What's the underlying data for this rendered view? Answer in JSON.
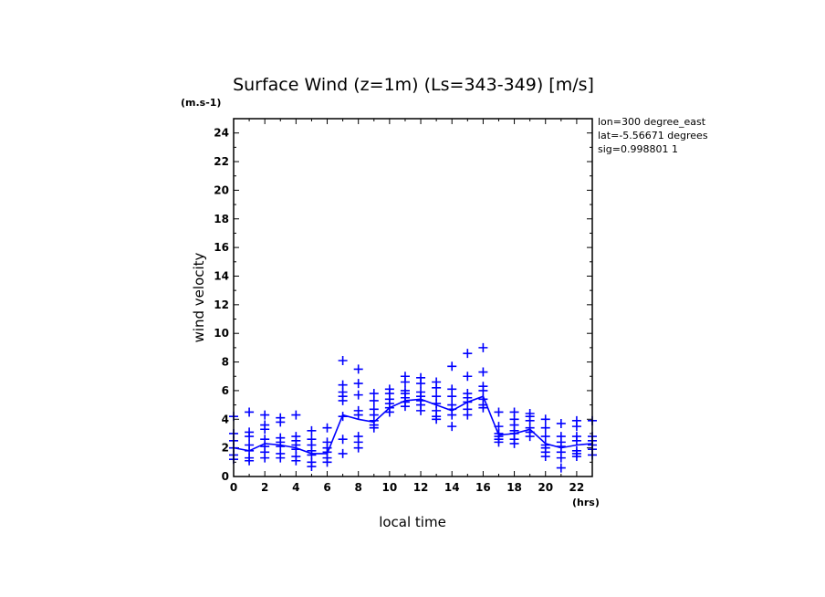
{
  "chart_data": {
    "type": "scatter",
    "title": "Surface Wind (z=1m) (Ls=343-349) [m/s]",
    "y_unit": "(m.s-1)",
    "x_unit": "(hrs)",
    "xlabel": "local time",
    "ylabel": "wind velocity",
    "xlim": [
      0,
      23
    ],
    "ylim": [
      0,
      25
    ],
    "x_ticks": [
      0,
      2,
      4,
      6,
      8,
      10,
      12,
      14,
      16,
      18,
      20,
      22
    ],
    "y_ticks": [
      0,
      2,
      4,
      6,
      8,
      10,
      12,
      14,
      16,
      18,
      20,
      22,
      24
    ],
    "grid": false,
    "info_lines": [
      "lon=300 degree_east",
      "lat=-5.56671 degrees",
      "sig=0.998801 1"
    ],
    "colors": {
      "series": "#0000ff",
      "axes": "#000000"
    },
    "series": [
      {
        "kind": "mean-line",
        "x": [
          0,
          1,
          2,
          3,
          4,
          5,
          6,
          7,
          8,
          9,
          10,
          11,
          12,
          13,
          14,
          15,
          16,
          17,
          18,
          19,
          20,
          21,
          22,
          23
        ],
        "y": [
          2.0,
          1.8,
          2.3,
          2.2,
          2.0,
          1.6,
          1.6,
          4.3,
          4.0,
          3.8,
          4.8,
          5.3,
          5.4,
          5.0,
          4.6,
          5.2,
          5.6,
          2.9,
          3.0,
          3.3,
          2.3,
          2.0,
          2.2,
          2.3
        ]
      },
      {
        "kind": "samples",
        "marker": "+",
        "points": [
          [
            0,
            4.2
          ],
          [
            0,
            3.0
          ],
          [
            0,
            2.5
          ],
          [
            0,
            2.0
          ],
          [
            0,
            1.5
          ],
          [
            0,
            1.2
          ],
          [
            1,
            4.5
          ],
          [
            1,
            3.1
          ],
          [
            1,
            2.8
          ],
          [
            1,
            2.2
          ],
          [
            1,
            1.8
          ],
          [
            1,
            1.3
          ],
          [
            1,
            1.1
          ],
          [
            2,
            4.3
          ],
          [
            2,
            3.6
          ],
          [
            2,
            3.3
          ],
          [
            2,
            2.6
          ],
          [
            2,
            2.1
          ],
          [
            2,
            1.7
          ],
          [
            2,
            1.3
          ],
          [
            3,
            4.1
          ],
          [
            3,
            3.8
          ],
          [
            3,
            2.7
          ],
          [
            3,
            2.4
          ],
          [
            3,
            2.1
          ],
          [
            3,
            1.6
          ],
          [
            3,
            1.3
          ],
          [
            4,
            4.3
          ],
          [
            4,
            2.8
          ],
          [
            4,
            2.5
          ],
          [
            4,
            2.2
          ],
          [
            4,
            1.9
          ],
          [
            4,
            1.4
          ],
          [
            4,
            1.1
          ],
          [
            5,
            3.2
          ],
          [
            5,
            2.6
          ],
          [
            5,
            2.2
          ],
          [
            5,
            1.8
          ],
          [
            5,
            1.5
          ],
          [
            5,
            1.0
          ],
          [
            5,
            0.7
          ],
          [
            6,
            3.4
          ],
          [
            6,
            2.4
          ],
          [
            6,
            2.0
          ],
          [
            6,
            1.7
          ],
          [
            6,
            1.3
          ],
          [
            6,
            1.0
          ],
          [
            7,
            8.1
          ],
          [
            7,
            6.4
          ],
          [
            7,
            5.9
          ],
          [
            7,
            5.6
          ],
          [
            7,
            5.3
          ],
          [
            7,
            4.2
          ],
          [
            7,
            2.6
          ],
          [
            7,
            1.6
          ],
          [
            8,
            7.5
          ],
          [
            8,
            6.5
          ],
          [
            8,
            5.7
          ],
          [
            8,
            4.6
          ],
          [
            8,
            4.3
          ],
          [
            8,
            2.8
          ],
          [
            8,
            2.4
          ],
          [
            8,
            2.0
          ],
          [
            9,
            5.8
          ],
          [
            9,
            5.3
          ],
          [
            9,
            4.7
          ],
          [
            9,
            4.3
          ],
          [
            9,
            3.9
          ],
          [
            9,
            3.6
          ],
          [
            9,
            3.4
          ],
          [
            10,
            6.1
          ],
          [
            10,
            5.8
          ],
          [
            10,
            5.4
          ],
          [
            10,
            5.1
          ],
          [
            10,
            4.8
          ],
          [
            10,
            4.5
          ],
          [
            11,
            7.0
          ],
          [
            11,
            6.6
          ],
          [
            11,
            6.0
          ],
          [
            11,
            5.8
          ],
          [
            11,
            5.5
          ],
          [
            11,
            5.2
          ],
          [
            11,
            4.9
          ],
          [
            12,
            6.9
          ],
          [
            12,
            6.5
          ],
          [
            12,
            5.9
          ],
          [
            12,
            5.6
          ],
          [
            12,
            5.3
          ],
          [
            12,
            5.0
          ],
          [
            12,
            4.6
          ],
          [
            13,
            6.6
          ],
          [
            13,
            6.2
          ],
          [
            13,
            5.6
          ],
          [
            13,
            5.1
          ],
          [
            13,
            4.6
          ],
          [
            13,
            4.2
          ],
          [
            13,
            4.0
          ],
          [
            14,
            7.7
          ],
          [
            14,
            6.1
          ],
          [
            14,
            5.6
          ],
          [
            14,
            5.0
          ],
          [
            14,
            4.7
          ],
          [
            14,
            4.3
          ],
          [
            14,
            3.5
          ],
          [
            15,
            8.6
          ],
          [
            15,
            7.0
          ],
          [
            15,
            5.8
          ],
          [
            15,
            5.5
          ],
          [
            15,
            5.2
          ],
          [
            15,
            4.7
          ],
          [
            15,
            4.3
          ],
          [
            16,
            9.0
          ],
          [
            16,
            7.3
          ],
          [
            16,
            6.3
          ],
          [
            16,
            6.0
          ],
          [
            16,
            5.4
          ],
          [
            16,
            5.0
          ],
          [
            16,
            4.8
          ],
          [
            17,
            4.5
          ],
          [
            17,
            3.5
          ],
          [
            17,
            3.0
          ],
          [
            17,
            2.8
          ],
          [
            17,
            2.6
          ],
          [
            17,
            2.4
          ],
          [
            18,
            4.5
          ],
          [
            18,
            4.0
          ],
          [
            18,
            3.6
          ],
          [
            18,
            3.2
          ],
          [
            18,
            3.0
          ],
          [
            18,
            2.6
          ],
          [
            18,
            2.3
          ],
          [
            19,
            4.4
          ],
          [
            19,
            4.2
          ],
          [
            19,
            3.9
          ],
          [
            19,
            3.4
          ],
          [
            19,
            3.1
          ],
          [
            19,
            2.8
          ],
          [
            20,
            4.0
          ],
          [
            20,
            3.4
          ],
          [
            20,
            2.8
          ],
          [
            20,
            2.2
          ],
          [
            20,
            2.0
          ],
          [
            20,
            1.7
          ],
          [
            20,
            1.4
          ],
          [
            21,
            3.7
          ],
          [
            21,
            2.8
          ],
          [
            21,
            2.4
          ],
          [
            21,
            2.1
          ],
          [
            21,
            1.7
          ],
          [
            21,
            1.3
          ],
          [
            21,
            0.6
          ],
          [
            22,
            3.9
          ],
          [
            22,
            3.5
          ],
          [
            22,
            2.8
          ],
          [
            22,
            2.5
          ],
          [
            22,
            1.8
          ],
          [
            22,
            1.6
          ],
          [
            22,
            1.4
          ],
          [
            23,
            3.9
          ],
          [
            23,
            2.8
          ],
          [
            23,
            2.5
          ],
          [
            23,
            2.2
          ],
          [
            23,
            1.9
          ],
          [
            23,
            1.5
          ]
        ]
      }
    ]
  }
}
